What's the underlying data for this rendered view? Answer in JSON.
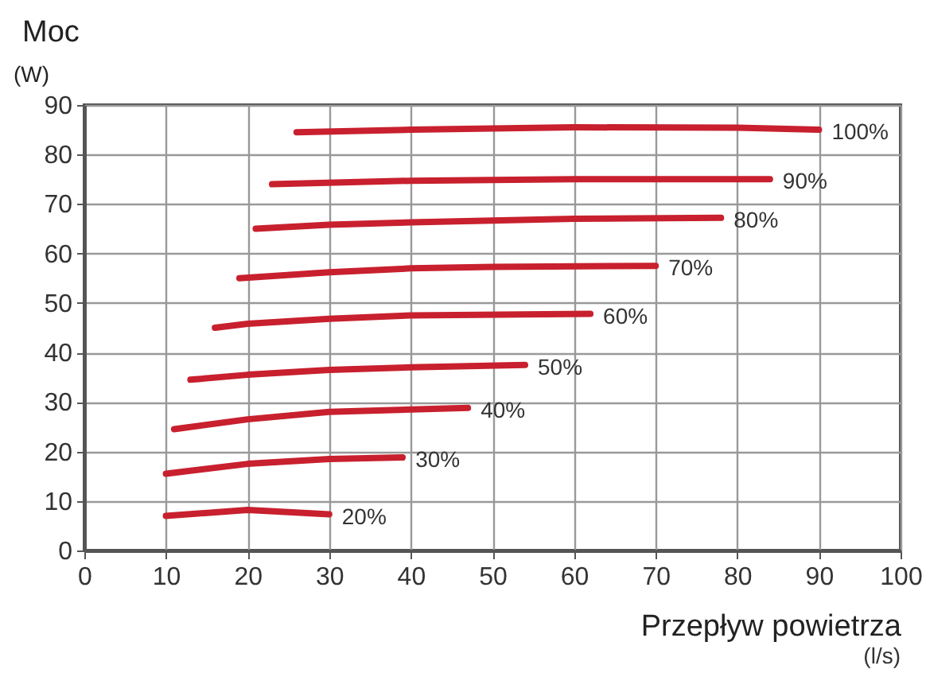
{
  "chart_data": {
    "type": "line",
    "title": "Moc",
    "ylabel": "(W)",
    "xlabel": "Przepływ powietrza",
    "annotations": [
      "(l/s)"
    ],
    "xlim": [
      0,
      100
    ],
    "xticks": [
      0,
      10,
      20,
      30,
      40,
      50,
      60,
      70,
      80,
      90,
      100
    ],
    "ylim": [
      0,
      90
    ],
    "yticks": [
      0,
      10,
      20,
      30,
      40,
      50,
      60,
      70,
      80,
      90
    ],
    "grid": true,
    "legend": false,
    "marker": "none",
    "line_style": "solid",
    "series": [
      {
        "name": "20%",
        "color": "#c8202e",
        "x": [
          10,
          20,
          30
        ],
        "values": [
          7,
          8.2,
          7.3
        ]
      },
      {
        "name": "30%",
        "color": "#c8202e",
        "x": [
          10,
          20,
          30,
          39
        ],
        "values": [
          15.5,
          17.5,
          18.5,
          18.8
        ]
      },
      {
        "name": "40%",
        "color": "#c8202e",
        "x": [
          11,
          20,
          30,
          47
        ],
        "values": [
          24.5,
          26.5,
          28,
          28.8
        ]
      },
      {
        "name": "50%",
        "color": "#c8202e",
        "x": [
          13,
          20,
          30,
          40,
          54
        ],
        "values": [
          34.5,
          35.5,
          36.5,
          37,
          37.5
        ]
      },
      {
        "name": "60%",
        "color": "#c8202e",
        "x": [
          16,
          20,
          30,
          40,
          62
        ],
        "values": [
          45,
          45.8,
          46.8,
          47.5,
          47.8
        ]
      },
      {
        "name": "70%",
        "color": "#c8202e",
        "x": [
          19,
          30,
          40,
          50,
          70
        ],
        "values": [
          55,
          56.2,
          57,
          57.3,
          57.5
        ]
      },
      {
        "name": "80%",
        "color": "#c8202e",
        "x": [
          21,
          30,
          40,
          60,
          78
        ],
        "values": [
          65,
          65.8,
          66.3,
          67,
          67.2
        ]
      },
      {
        "name": "90%",
        "color": "#c8202e",
        "x": [
          23,
          40,
          60,
          84
        ],
        "values": [
          74,
          74.7,
          75,
          75
        ]
      },
      {
        "name": "100%",
        "color": "#c8202e",
        "x": [
          26,
          40,
          60,
          80,
          90
        ],
        "values": [
          84.5,
          85,
          85.5,
          85.4,
          85
        ]
      }
    ]
  }
}
